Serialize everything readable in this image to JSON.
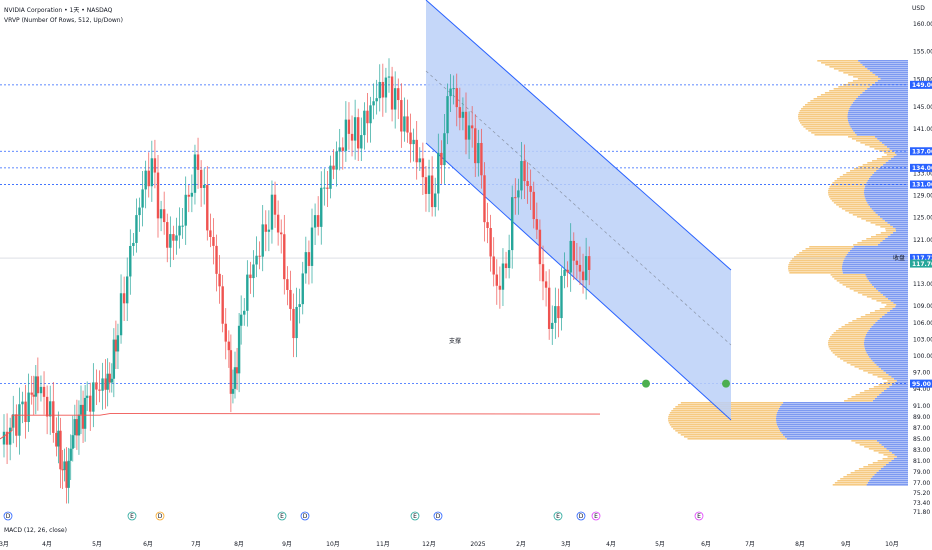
{
  "header": {
    "title": "NVIDIA Corporation • 1天 • NASDAQ",
    "indicator": "VRVP (Number Of Rows, 512, Up/Down)",
    "currency": "USD"
  },
  "footer": {
    "macd": "MACD (12, 26, close)"
  },
  "annotation": {
    "support": "支撑"
  },
  "colors": {
    "up": "#26a69a",
    "down": "#ef5350",
    "channel": "#2962ff",
    "channel_fill": "#bbd0f8",
    "vp_up": "#6f8ff0",
    "vp_down": "#f5c16c",
    "level": "#2962ff",
    "poc": "#ef5350"
  },
  "chart_data": {
    "type": "candlestick",
    "title": "NVIDIA Corporation • 1天 • NASDAQ",
    "xlabel": "",
    "ylabel": "",
    "ylim": [
      70.5,
      163
    ],
    "price_ticks": [
      160,
      155,
      150,
      145,
      141,
      137,
      133,
      129,
      125,
      121,
      117,
      113,
      109,
      106,
      103,
      100,
      97,
      94,
      91,
      89,
      87,
      85,
      83,
      81,
      79,
      77,
      75.2,
      73.4,
      71.8
    ],
    "x_ticks": [
      "3月",
      "4月",
      "5月",
      "6月",
      "7月",
      "8月",
      "9月",
      "10月",
      "11月",
      "12月",
      "2025",
      "2月",
      "3月",
      "4月",
      "5月",
      "6月",
      "7月",
      "8月",
      "9月",
      "10月"
    ],
    "candles": [
      [
        0,
        0.5,
        0.62,
        0.35,
        0.45
      ],
      [
        1,
        0.45,
        0.7,
        0.4,
        0.66
      ],
      [
        2,
        0.66,
        0.9,
        0.6,
        0.84
      ],
      [
        3,
        0.84,
        0.92,
        0.6,
        0.66
      ],
      [
        4,
        0.66,
        0.8,
        0.55,
        0.74
      ],
      [
        5,
        0.74,
        1.0,
        0.7,
        0.96
      ],
      [
        6,
        0.96,
        1.0,
        0.72,
        0.8
      ],
      [
        7,
        0.8,
        0.85,
        0.55,
        0.6
      ],
      [
        8,
        0.6,
        0.75,
        0.5,
        0.72
      ],
      [
        9,
        0.72,
        0.9,
        0.68,
        0.86
      ],
      [
        10,
        0.86,
        0.95,
        0.7,
        0.76
      ],
      [
        11,
        0.76,
        0.8,
        0.5,
        0.58
      ],
      [
        12,
        0.58,
        0.62,
        0.28,
        0.32
      ],
      [
        13,
        0.32,
        0.5,
        0.3,
        0.44
      ],
      [
        14,
        0.44,
        0.5,
        0.25,
        0.3
      ],
      [
        15,
        0.3,
        0.45,
        0.15,
        0.4
      ],
      [
        16,
        0.4,
        0.55,
        0.35,
        0.5
      ],
      [
        17,
        0.5,
        0.7,
        0.45,
        0.66
      ],
      [
        18,
        0.66,
        0.78,
        0.6,
        0.74
      ],
      [
        19,
        0.74,
        0.88,
        0.7,
        0.84
      ],
      [
        20,
        0.84,
        0.95,
        0.8,
        0.92
      ],
      [
        21,
        0.92,
        1.0,
        0.88,
        0.98
      ],
      [
        22,
        0.98,
        1.0,
        0.9,
        0.95
      ],
      [
        23,
        0.95,
        0.96,
        0.85,
        0.9
      ],
      [
        24,
        0.9,
        0.99,
        0.85,
        0.96
      ],
      [
        25,
        0.96,
        1.0,
        0.92,
        0.97
      ]
    ],
    "price_path": [
      [
        0,
        84
      ],
      [
        3,
        86
      ],
      [
        6,
        89
      ],
      [
        9,
        91
      ],
      [
        11,
        95
      ],
      [
        14,
        93
      ],
      [
        17,
        88
      ],
      [
        19,
        82
      ],
      [
        21,
        78
      ],
      [
        23,
        86
      ],
      [
        25,
        88
      ],
      [
        27,
        90
      ],
      [
        30,
        93
      ],
      [
        33,
        95
      ],
      [
        35,
        96
      ],
      [
        37,
        103
      ],
      [
        40,
        112
      ],
      [
        43,
        122
      ],
      [
        46,
        130
      ],
      [
        49,
        134
      ],
      [
        52,
        124
      ],
      [
        55,
        120
      ],
      [
        58,
        123
      ],
      [
        61,
        130
      ],
      [
        64,
        136
      ],
      [
        67,
        125
      ],
      [
        70,
        116
      ],
      [
        73,
        102
      ],
      [
        75,
        92
      ],
      [
        77,
        103
      ],
      [
        80,
        113
      ],
      [
        83,
        118
      ],
      [
        86,
        124
      ],
      [
        89,
        128
      ],
      [
        92,
        116
      ],
      [
        95,
        104
      ],
      [
        98,
        114
      ],
      [
        101,
        121
      ],
      [
        104,
        128
      ],
      [
        107,
        133
      ],
      [
        110,
        138
      ],
      [
        113,
        142
      ],
      [
        116,
        140
      ],
      [
        119,
        144
      ],
      [
        122,
        147
      ],
      [
        125,
        149
      ],
      [
        128,
        146
      ],
      [
        131,
        141
      ],
      [
        134,
        138
      ],
      [
        137,
        133
      ],
      [
        140,
        129
      ],
      [
        143,
        137
      ],
      [
        146,
        150
      ],
      [
        149,
        143
      ],
      [
        152,
        140
      ],
      [
        155,
        136
      ],
      [
        158,
        121
      ],
      [
        161,
        112
      ],
      [
        164,
        117
      ],
      [
        167,
        131
      ],
      [
        170,
        134
      ],
      [
        173,
        126
      ],
      [
        176,
        113
      ],
      [
        179,
        104
      ],
      [
        182,
        112
      ],
      [
        185,
        119
      ],
      [
        188,
        115
      ],
      [
        191,
        117
      ]
    ],
    "levels": [
      149,
      137,
      134,
      131,
      95
    ],
    "price_tags": [
      "149.00",
      "137.00",
      "134.00",
      "131.00",
      "117.72",
      "117.70",
      "95.00"
    ],
    "close_label": "收盘",
    "events_bottom": [
      "D",
      "E",
      "D",
      "E",
      "D",
      "E",
      "D",
      "E",
      "D",
      "E",
      "D",
      "E"
    ]
  }
}
